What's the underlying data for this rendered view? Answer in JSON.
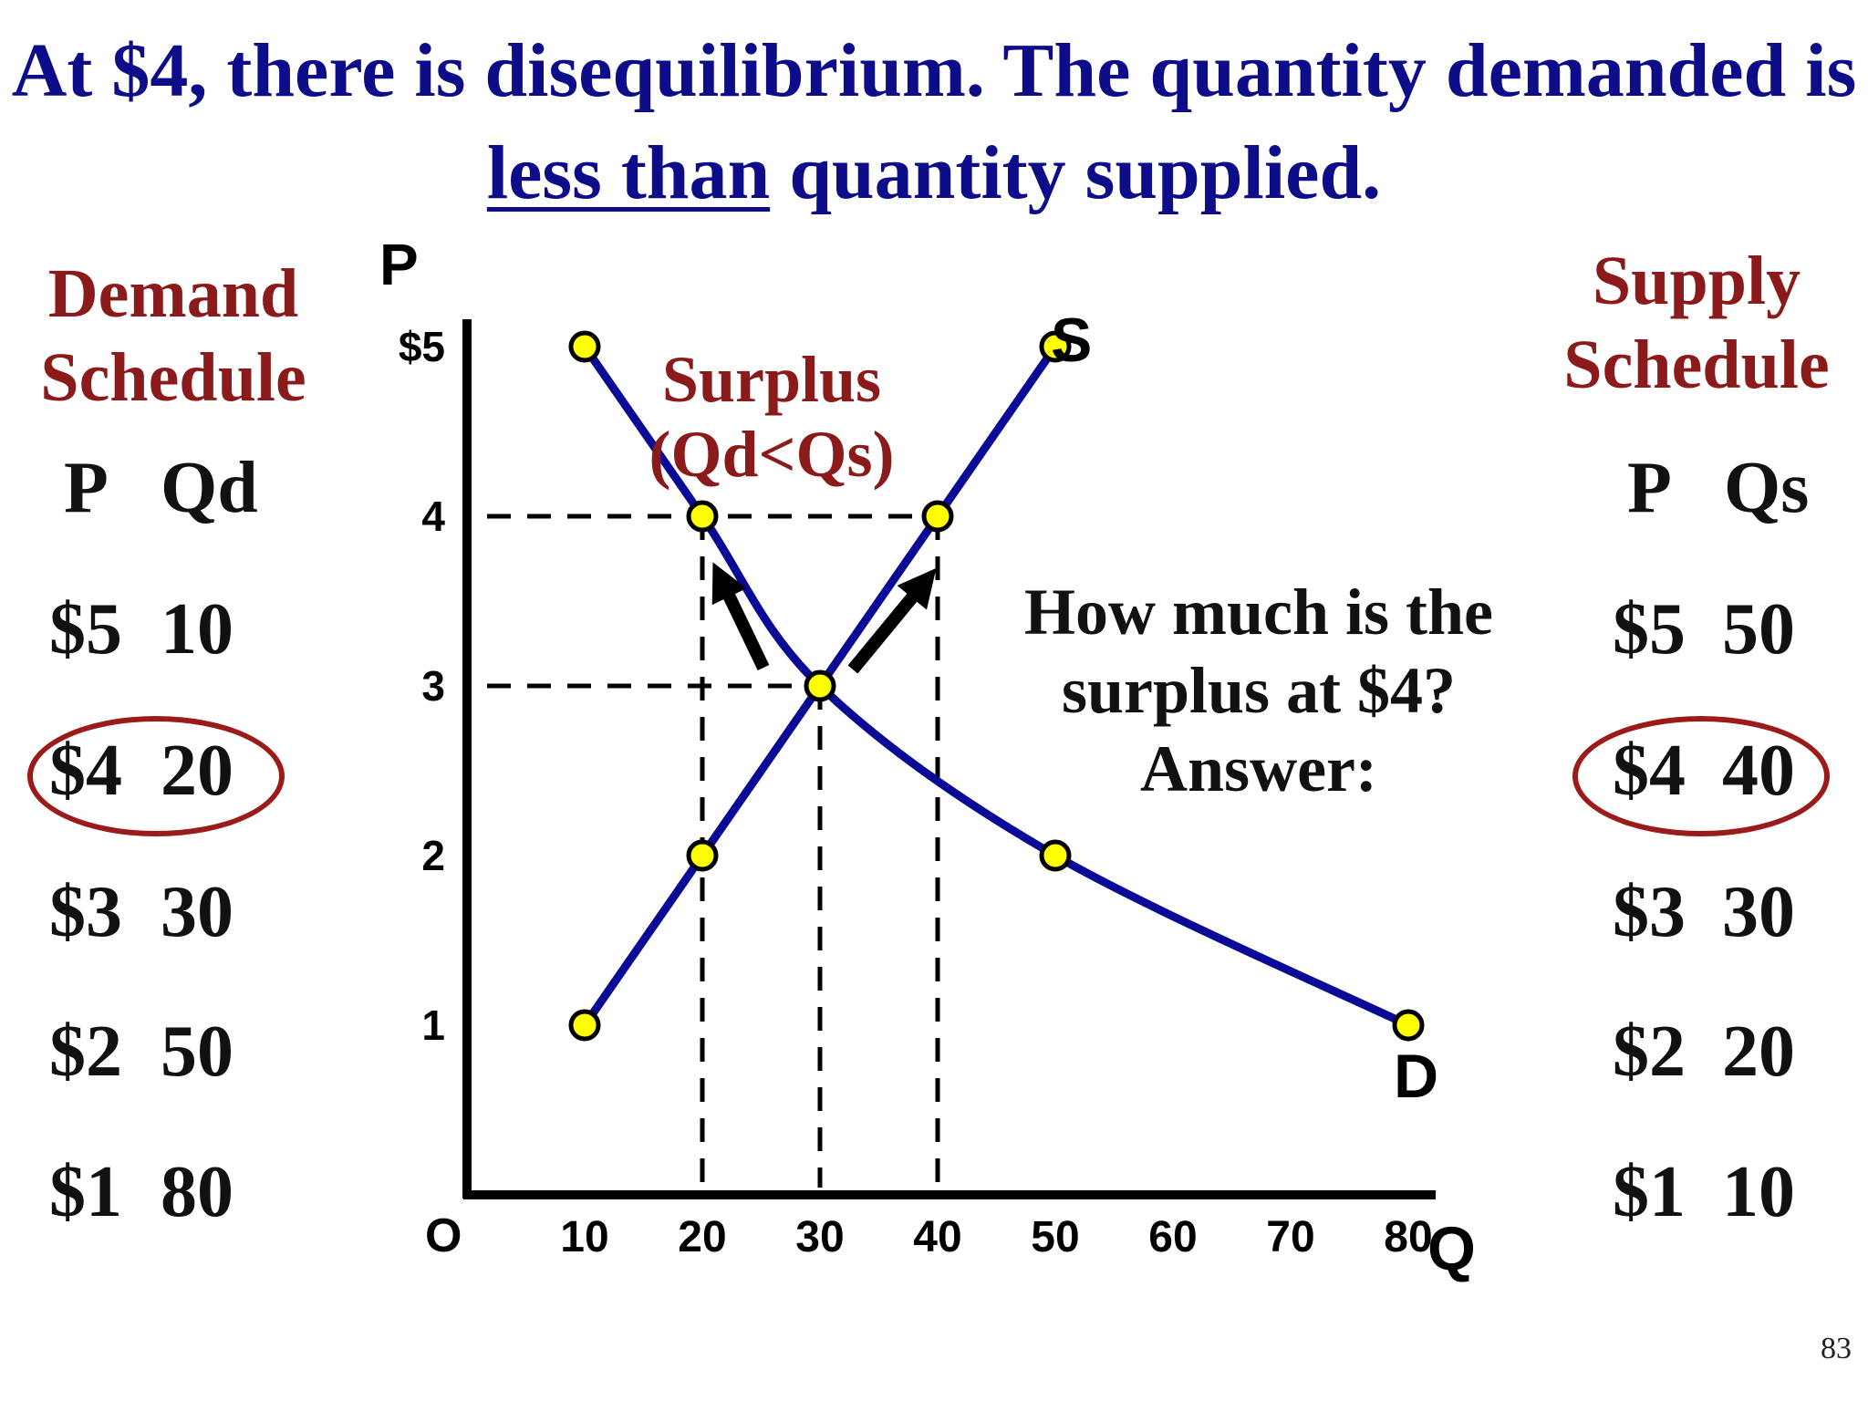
{
  "slide": {
    "title_part1": "At $4, there is disequilibrium. The quantity demanded is ",
    "title_underlined": "less than",
    "title_part2": " quantity supplied.",
    "page_number": "83"
  },
  "demand_schedule": {
    "title_line1": "Demand",
    "title_line2": "Schedule",
    "header_p": "P",
    "header_q": "Qd",
    "rows": [
      {
        "p": "$5",
        "q": "10"
      },
      {
        "p": "$4",
        "q": "20"
      },
      {
        "p": "$3",
        "q": "30"
      },
      {
        "p": "$2",
        "q": "50"
      },
      {
        "p": "$1",
        "q": "80"
      }
    ],
    "highlighted_row": 1
  },
  "supply_schedule": {
    "title_line1": "Supply",
    "title_line2": "Schedule",
    "header_p": "P",
    "header_q": "Qs",
    "rows": [
      {
        "p": "$5",
        "q": "50"
      },
      {
        "p": "$4",
        "q": "40"
      },
      {
        "p": "$3",
        "q": "30"
      },
      {
        "p": "$2",
        "q": "20"
      },
      {
        "p": "$1",
        "q": "10"
      }
    ],
    "highlighted_row": 1
  },
  "question": {
    "line1": "How much is the",
    "line2": "surplus at $4?",
    "line3": "Answer:"
  },
  "colors": {
    "curve": "#0a0a96",
    "point_fill": "#ffff00",
    "title": "#0d0d8a",
    "accent_red": "#8b1a1a"
  },
  "chart_data": {
    "type": "line",
    "xlabel": "Q",
    "ylabel": "P",
    "origin_label": "O",
    "xlim": [
      0,
      80
    ],
    "ylim": [
      0,
      5
    ],
    "x_ticks": [
      "10",
      "20",
      "30",
      "40",
      "50",
      "60",
      "70",
      "80"
    ],
    "y_ticks": [
      "1",
      "2",
      "3",
      "4",
      "$5"
    ],
    "series": [
      {
        "name": "D",
        "points": [
          [
            10,
            5
          ],
          [
            20,
            4
          ],
          [
            30,
            3
          ],
          [
            50,
            2
          ],
          [
            80,
            1
          ]
        ]
      },
      {
        "name": "S",
        "points": [
          [
            10,
            1
          ],
          [
            20,
            2
          ],
          [
            30,
            3
          ],
          [
            40,
            4
          ],
          [
            50,
            5
          ]
        ]
      }
    ],
    "surplus_label_line1": "Surplus",
    "surplus_label_line2": "(Qd<Qs)",
    "surplus_price": 4,
    "equilibrium": [
      30,
      3
    ]
  }
}
